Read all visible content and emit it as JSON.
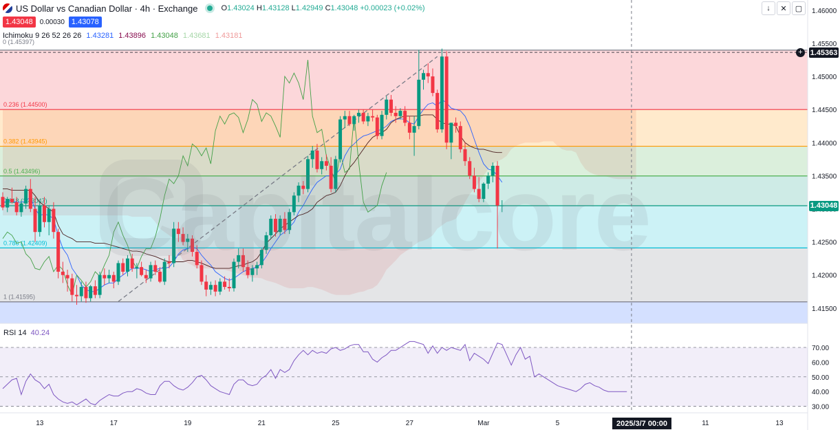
{
  "header": {
    "title": "US Dollar vs Canadian Dollar · 4h · Exchange",
    "ohlc": {
      "o_label": "O",
      "o": "1.43024",
      "h_label": "H",
      "h": "1.43128",
      "l_label": "L",
      "l": "1.42949",
      "c_label": "C",
      "c": "1.43048",
      "chg": "+0.00023 (+0.02%)"
    },
    "bid": "1.43048",
    "spread": "0.00030",
    "ask": "1.43078",
    "ichimoku": {
      "label": "Ichimoku 9 26 52 26 26",
      "v1": "1.43281",
      "v2": "1.43896",
      "v3": "1.43048",
      "v4": "1.43681",
      "v5": "1.43181"
    },
    "fib_top_label": "0 (1.45397)"
  },
  "colors": {
    "up": "#089981",
    "down": "#f23645",
    "tenkan": "#2962ff",
    "kijun": "#4a1f1f",
    "chikou": "#43a047",
    "rsi": "#7e57c2"
  },
  "controls": [
    "arrow-down",
    "collapse",
    "fullscreen"
  ],
  "watermark": "Capitalcore",
  "chart_data": {
    "type": "candlestick",
    "symbol": "USDCAD",
    "interval": "4h",
    "y_axis": {
      "ticks": [
        1.46,
        1.455,
        1.45,
        1.445,
        1.44,
        1.435,
        1.43,
        1.425,
        1.42,
        1.415
      ],
      "tick_labels": [
        "1.46000",
        "1.45500",
        "1.45000",
        "1.44500",
        "1.44000",
        "1.43500",
        "1.43000",
        "1.42500",
        "1.42000",
        "1.41500"
      ],
      "ylim": [
        1.4127,
        1.4605
      ]
    },
    "x_axis": {
      "tick_labels": [
        "13",
        "17",
        "19",
        "21",
        "25",
        "27",
        "Mar",
        "5",
        "11",
        "13"
      ],
      "tick_candle_index": [
        8,
        24,
        40,
        56,
        72,
        88,
        104,
        120,
        152,
        168
      ],
      "cursor_label": "2025/3/7  00:00",
      "cursor_index": 136
    },
    "last_price": "1.43048",
    "crosshair_price": "1.45363",
    "fib_levels": [
      {
        "label": "0 (1.45397)",
        "value": 1.45397,
        "color": "#787b86"
      },
      {
        "label": "0.236 (1.44500)",
        "value": 1.445,
        "color": "#f23645"
      },
      {
        "label": "0.382 (1.43945)",
        "value": 1.43945,
        "color": "#ff9800"
      },
      {
        "label": "0.5 (1.43496)",
        "value": 1.43496,
        "color": "#4caf50"
      },
      {
        "label": "0.618 (1.43047)",
        "value": 1.43047,
        "color": "#089981"
      },
      {
        "label": "0.786 (1.42409)",
        "value": 1.42409,
        "color": "#00bcd4"
      },
      {
        "label": "1 (1.41595)",
        "value": 1.41595,
        "color": "#787b86"
      }
    ],
    "fib_zones": [
      "rgba(242,54,69,0.2)",
      "rgba(255,152,0,0.2)",
      "rgba(76,175,80,0.2)",
      "rgba(8,153,129,0.2)",
      "rgba(0,188,212,0.2)",
      "rgba(120,123,134,0.2)"
    ],
    "candles": [
      [
        1.4318,
        1.4325,
        1.4298,
        1.4302
      ],
      [
        1.4302,
        1.4318,
        1.4295,
        1.4315
      ],
      [
        1.4315,
        1.4332,
        1.4308,
        1.431
      ],
      [
        1.431,
        1.4318,
        1.429,
        1.4295
      ],
      [
        1.4295,
        1.4312,
        1.4288,
        1.4308
      ],
      [
        1.4308,
        1.4335,
        1.43,
        1.433
      ],
      [
        1.433,
        1.4345,
        1.4295,
        1.43
      ],
      [
        1.43,
        1.4318,
        1.425,
        1.4265
      ],
      [
        1.4265,
        1.431,
        1.4258,
        1.4305
      ],
      [
        1.4305,
        1.4318,
        1.4272,
        1.428
      ],
      [
        1.428,
        1.4305,
        1.426,
        1.43
      ],
      [
        1.43,
        1.431,
        1.4255,
        1.4265
      ],
      [
        1.4265,
        1.427,
        1.4195,
        1.4205
      ],
      [
        1.4205,
        1.422,
        1.4188,
        1.42
      ],
      [
        1.42,
        1.4208,
        1.4175,
        1.4195
      ],
      [
        1.4195,
        1.4202,
        1.416,
        1.417
      ],
      [
        1.417,
        1.4185,
        1.4155,
        1.4168
      ],
      [
        1.4168,
        1.419,
        1.416,
        1.4182
      ],
      [
        1.4182,
        1.419,
        1.4158,
        1.4165
      ],
      [
        1.4165,
        1.4185,
        1.416,
        1.4183
      ],
      [
        1.4183,
        1.4192,
        1.4165,
        1.417
      ],
      [
        1.417,
        1.4205,
        1.4165,
        1.42
      ],
      [
        1.42,
        1.421,
        1.4185,
        1.4195
      ],
      [
        1.4195,
        1.4208,
        1.4188,
        1.42
      ],
      [
        1.42,
        1.4205,
        1.418,
        1.419
      ],
      [
        1.419,
        1.4222,
        1.4185,
        1.4218
      ],
      [
        1.4218,
        1.4225,
        1.42,
        1.4205
      ],
      [
        1.4205,
        1.423,
        1.4198,
        1.4225
      ],
      [
        1.4225,
        1.4232,
        1.4205,
        1.421
      ],
      [
        1.421,
        1.4218,
        1.4195,
        1.4212
      ],
      [
        1.4212,
        1.422,
        1.4198,
        1.42
      ],
      [
        1.42,
        1.4208,
        1.4188,
        1.4195
      ],
      [
        1.4195,
        1.422,
        1.419,
        1.4215
      ],
      [
        1.4215,
        1.4222,
        1.42,
        1.4205
      ],
      [
        1.4205,
        1.4212,
        1.4188,
        1.419
      ],
      [
        1.419,
        1.4225,
        1.4185,
        1.422
      ],
      [
        1.422,
        1.423,
        1.421,
        1.4218
      ],
      [
        1.4218,
        1.428,
        1.4212,
        1.427
      ],
      [
        1.427,
        1.428,
        1.425,
        1.4262
      ],
      [
        1.4262,
        1.4272,
        1.4245,
        1.425
      ],
      [
        1.425,
        1.4262,
        1.4235,
        1.4255
      ],
      [
        1.4255,
        1.426,
        1.4228,
        1.4235
      ],
      [
        1.4235,
        1.4245,
        1.421,
        1.4215
      ],
      [
        1.4215,
        1.4222,
        1.4185,
        1.419
      ],
      [
        1.419,
        1.42,
        1.4168,
        1.4178
      ],
      [
        1.4178,
        1.419,
        1.417,
        1.4185
      ],
      [
        1.4185,
        1.4192,
        1.4168,
        1.4175
      ],
      [
        1.4175,
        1.4195,
        1.417,
        1.419
      ],
      [
        1.419,
        1.4198,
        1.4178,
        1.4182
      ],
      [
        1.4182,
        1.4195,
        1.4175,
        1.418
      ],
      [
        1.418,
        1.4225,
        1.4175,
        1.422
      ],
      [
        1.422,
        1.424,
        1.421,
        1.423
      ],
      [
        1.423,
        1.424,
        1.4205,
        1.4212
      ],
      [
        1.4212,
        1.4222,
        1.4195,
        1.42
      ],
      [
        1.42,
        1.4215,
        1.419,
        1.421
      ],
      [
        1.421,
        1.422,
        1.42,
        1.4215
      ],
      [
        1.4215,
        1.424,
        1.421,
        1.4238
      ],
      [
        1.4238,
        1.4265,
        1.4232,
        1.426
      ],
      [
        1.426,
        1.429,
        1.4255,
        1.4285
      ],
      [
        1.4285,
        1.4292,
        1.4258,
        1.4265
      ],
      [
        1.4265,
        1.429,
        1.426,
        1.4285
      ],
      [
        1.4285,
        1.4295,
        1.4262,
        1.4268
      ],
      [
        1.4268,
        1.43,
        1.4262,
        1.4295
      ],
      [
        1.4295,
        1.4325,
        1.429,
        1.432
      ],
      [
        1.432,
        1.434,
        1.431,
        1.4335
      ],
      [
        1.4335,
        1.4342,
        1.4322,
        1.433
      ],
      [
        1.433,
        1.438,
        1.4325,
        1.4375
      ],
      [
        1.4375,
        1.4395,
        1.4362,
        1.4388
      ],
      [
        1.4388,
        1.4398,
        1.4355,
        1.436
      ],
      [
        1.436,
        1.4378,
        1.4352,
        1.4372
      ],
      [
        1.4372,
        1.4382,
        1.4358,
        1.4365
      ],
      [
        1.4365,
        1.4378,
        1.4325,
        1.433
      ],
      [
        1.433,
        1.438,
        1.4325,
        1.4375
      ],
      [
        1.4375,
        1.444,
        1.437,
        1.4435
      ],
      [
        1.4435,
        1.4448,
        1.4422,
        1.444
      ],
      [
        1.444,
        1.4448,
        1.4425,
        1.4428
      ],
      [
        1.4428,
        1.4442,
        1.4418,
        1.444
      ],
      [
        1.444,
        1.445,
        1.443,
        1.4445
      ],
      [
        1.4445,
        1.445,
        1.4428,
        1.4432
      ],
      [
        1.4432,
        1.4445,
        1.4425,
        1.444
      ],
      [
        1.444,
        1.445,
        1.4432,
        1.4438
      ],
      [
        1.4438,
        1.4442,
        1.4405,
        1.441
      ],
      [
        1.441,
        1.4448,
        1.4405,
        1.4442
      ],
      [
        1.4442,
        1.447,
        1.4435,
        1.4465
      ],
      [
        1.4465,
        1.4472,
        1.444,
        1.4445
      ],
      [
        1.4445,
        1.4455,
        1.443,
        1.444
      ],
      [
        1.444,
        1.4452,
        1.4435,
        1.4448
      ],
      [
        1.4448,
        1.4455,
        1.4425,
        1.443
      ],
      [
        1.443,
        1.444,
        1.4405,
        1.4415
      ],
      [
        1.4415,
        1.444,
        1.438,
        1.4425
      ],
      [
        1.4425,
        1.454,
        1.442,
        1.4495
      ],
      [
        1.4495,
        1.451,
        1.448,
        1.4505
      ],
      [
        1.4505,
        1.452,
        1.449,
        1.45
      ],
      [
        1.45,
        1.4512,
        1.447,
        1.4475
      ],
      [
        1.4475,
        1.448,
        1.4415,
        1.442
      ],
      [
        1.442,
        1.4542,
        1.4415,
        1.453
      ],
      [
        1.453,
        1.4538,
        1.439,
        1.44
      ],
      [
        1.44,
        1.443,
        1.4375,
        1.443
      ],
      [
        1.443,
        1.4438,
        1.4415,
        1.4425
      ],
      [
        1.4425,
        1.4432,
        1.4385,
        1.439
      ],
      [
        1.439,
        1.44,
        1.4365,
        1.4372
      ],
      [
        1.4372,
        1.4378,
        1.4345,
        1.435
      ],
      [
        1.435,
        1.4362,
        1.4325,
        1.433
      ],
      [
        1.433,
        1.4348,
        1.431,
        1.4315
      ],
      [
        1.4315,
        1.434,
        1.431,
        1.4338
      ],
      [
        1.4338,
        1.4355,
        1.433,
        1.435
      ],
      [
        1.435,
        1.437,
        1.434,
        1.4365
      ],
      [
        1.4365,
        1.4372,
        1.424,
        1.4305
      ],
      [
        1.4305,
        1.4313,
        1.4295,
        1.4305
      ]
    ],
    "tenkan": [
      1.431,
      1.4312,
      1.4312,
      1.431,
      1.431,
      1.4312,
      1.4318,
      1.43,
      1.429,
      1.4292,
      1.429,
      1.4285,
      1.426,
      1.424,
      1.423,
      1.421,
      1.42,
      1.4185,
      1.4178,
      1.4175,
      1.4175,
      1.418,
      1.4185,
      1.4188,
      1.4188,
      1.4195,
      1.42,
      1.4205,
      1.421,
      1.421,
      1.421,
      1.4208,
      1.4205,
      1.4208,
      1.421,
      1.421,
      1.4212,
      1.422,
      1.4232,
      1.4238,
      1.424,
      1.4242,
      1.424,
      1.423,
      1.4222,
      1.4215,
      1.4205,
      1.42,
      1.4195,
      1.4192,
      1.4195,
      1.42,
      1.4205,
      1.4208,
      1.421,
      1.4212,
      1.4218,
      1.4228,
      1.424,
      1.425,
      1.426,
      1.4265,
      1.4272,
      1.428,
      1.4295,
      1.4305,
      1.4318,
      1.433,
      1.434,
      1.4345,
      1.435,
      1.435,
      1.4352,
      1.436,
      1.438,
      1.4392,
      1.4398,
      1.4405,
      1.441,
      1.4412,
      1.4415,
      1.4418,
      1.442,
      1.4425,
      1.4432,
      1.4435,
      1.4436,
      1.4435,
      1.443,
      1.4428,
      1.444,
      1.445,
      1.4458,
      1.446,
      1.4455,
      1.4465,
      1.446,
      1.4452,
      1.445,
      1.4448,
      1.444,
      1.4425,
      1.4405,
      1.4385,
      1.4368,
      1.436,
      1.4358,
      1.435,
      1.434
    ],
    "kijun": [
      1.433,
      1.433,
      1.4328,
      1.4328,
      1.4328,
      1.4328,
      1.4328,
      1.432,
      1.431,
      1.4305,
      1.43,
      1.4295,
      1.4275,
      1.4262,
      1.4258,
      1.4255,
      1.425,
      1.425,
      1.425,
      1.425,
      1.4248,
      1.4248,
      1.4248,
      1.4246,
      1.4244,
      1.4242,
      1.424,
      1.4238,
      1.4236,
      1.4236,
      1.4235,
      1.4232,
      1.423,
      1.4228,
      1.4225,
      1.4222,
      1.422,
      1.422,
      1.422,
      1.422,
      1.4222,
      1.4222,
      1.422,
      1.4218,
      1.4215,
      1.4212,
      1.421,
      1.421,
      1.421,
      1.421,
      1.4212,
      1.4214,
      1.4215,
      1.4218,
      1.422,
      1.4225,
      1.4235,
      1.4248,
      1.4255,
      1.4262,
      1.427,
      1.4275,
      1.428,
      1.4285,
      1.429,
      1.4292,
      1.4295,
      1.43,
      1.431,
      1.4315,
      1.432,
      1.4322,
      1.4325,
      1.4335,
      1.435,
      1.4362,
      1.437,
      1.438,
      1.439,
      1.44,
      1.4408,
      1.4412,
      1.4415,
      1.442,
      1.443,
      1.4435,
      1.4438,
      1.444,
      1.444,
      1.444,
      1.444,
      1.4442,
      1.4442,
      1.4442,
      1.4435,
      1.443,
      1.4428,
      1.4428,
      1.4425,
      1.441,
      1.44,
      1.4395,
      1.4392,
      1.439,
      1.439,
      1.4388,
      1.4386,
      1.4385,
      1.4385
    ],
    "chikou": [
      1.4255,
      1.4265,
      1.426,
      1.4248,
      1.425,
      1.4232,
      1.4225,
      1.421,
      1.4208,
      1.422,
      1.4228,
      1.4205,
      1.4215,
      1.4208,
      1.4185,
      1.417,
      1.42,
      1.4192,
      1.4182,
      1.419,
      1.4205,
      1.4198,
      1.4215,
      1.423,
      1.4265,
      1.428,
      1.426,
      1.4245,
      1.4222,
      1.421,
      1.4228,
      1.424,
      1.424,
      1.4258,
      1.4285,
      1.432,
      1.4345,
      1.4338,
      1.435,
      1.438,
      1.4365,
      1.4398,
      1.4392,
      1.438,
      1.4392,
      1.4368,
      1.4418,
      1.444,
      1.4428,
      1.4442,
      1.4445,
      1.4438,
      1.4415,
      1.4435,
      1.4465,
      1.4458,
      1.4432,
      1.4445,
      1.444,
      1.4425,
      1.4408,
      1.45,
      1.449,
      1.4505,
      1.449,
      1.4465,
      1.4525,
      1.444,
      1.4415,
      1.442,
      1.438,
      1.436,
      1.434,
      1.4385,
      1.4355,
      1.436,
      1.444,
      1.437,
      1.431,
      1.4295,
      1.43,
      1.4305,
      1.4335,
      1.4355
    ],
    "span_a": [
      1.445,
      1.445,
      1.445,
      1.445,
      1.445,
      1.445,
      1.445,
      1.445,
      1.445,
      1.445,
      1.445,
      1.445,
      1.445,
      1.445,
      1.445,
      1.445,
      1.445,
      1.445,
      1.445,
      1.445,
      1.445,
      1.445,
      1.445,
      1.445,
      1.445,
      1.445,
      1.445,
      1.445,
      1.445,
      1.445,
      1.445,
      1.445,
      1.445,
      1.445,
      1.445,
      1.445,
      1.445,
      1.445,
      1.445,
      1.445,
      1.445,
      1.445,
      1.445,
      1.445,
      1.445,
      1.445,
      1.445,
      1.445,
      1.445,
      1.445,
      1.445,
      1.445,
      1.445,
      1.445,
      1.445,
      1.445,
      1.445,
      1.445,
      1.445,
      1.445,
      1.445,
      1.445,
      1.445,
      1.445,
      1.445,
      1.445,
      1.445,
      1.445,
      1.445,
      1.445,
      1.445,
      1.445,
      1.445,
      1.445,
      1.445,
      1.445,
      1.445,
      1.445,
      1.445,
      1.445,
      1.445,
      1.445,
      1.445,
      1.445,
      1.445,
      1.445,
      1.445,
      1.445,
      1.445,
      1.445,
      1.445,
      1.445,
      1.445,
      1.445,
      1.445,
      1.445,
      1.445,
      1.445,
      1.445,
      1.445,
      1.445,
      1.445,
      1.445,
      1.445,
      1.445,
      1.445,
      1.445,
      1.445,
      1.445,
      1.445,
      1.445,
      1.445,
      1.445,
      1.445,
      1.445,
      1.445,
      1.445,
      1.445,
      1.445,
      1.445,
      1.445,
      1.445,
      1.445,
      1.445,
      1.445,
      1.445,
      1.445,
      1.445,
      1.445,
      1.445,
      1.445,
      1.445,
      1.445,
      1.445,
      1.445,
      1.445,
      1.445,
      1.445
    ],
    "rsi": {
      "name": "RSI 14",
      "value": "40.24",
      "ylim": [
        27,
        77
      ],
      "levels": [
        70,
        50,
        30
      ],
      "tick_labels": [
        "70.00",
        "60.00",
        "50.00",
        "40.00",
        "30.00"
      ],
      "tick_values": [
        70,
        60,
        50,
        40,
        30
      ],
      "values": [
        42,
        45,
        48,
        49,
        38,
        47,
        52,
        48,
        46,
        42,
        45,
        38,
        35,
        33,
        32,
        33,
        31,
        33,
        35,
        32,
        31,
        34,
        36,
        38,
        37,
        37,
        39,
        40,
        40,
        42,
        41,
        39,
        38,
        38,
        44,
        47,
        47,
        44,
        42,
        41,
        43,
        46,
        50,
        51,
        48,
        44,
        42,
        40,
        39,
        38,
        45,
        48,
        48,
        45,
        44,
        45,
        49,
        51,
        55,
        49,
        55,
        53,
        55,
        61,
        65,
        68,
        65,
        68,
        66,
        67,
        66,
        69,
        70,
        68,
        69,
        71,
        72,
        72,
        67,
        67,
        62,
        60,
        63,
        65,
        68,
        68,
        70,
        72,
        74,
        74,
        73,
        72,
        66,
        71,
        66,
        70,
        68,
        70,
        69,
        68,
        72,
        61,
        66,
        64,
        62,
        59,
        66,
        73,
        72,
        65,
        58,
        65,
        70,
        62,
        64,
        50,
        52,
        50,
        48,
        46,
        44,
        43,
        42,
        41,
        40,
        42,
        45,
        46,
        44,
        43,
        41,
        40,
        40,
        40,
        40,
        40
      ]
    }
  }
}
